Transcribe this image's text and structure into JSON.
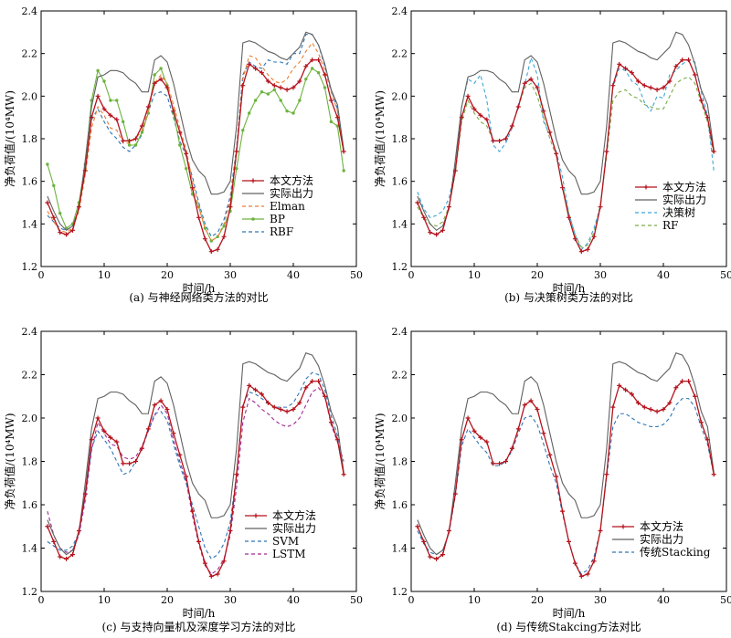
{
  "chart_data": [
    {
      "type": "line",
      "caption": "(a) 与神经网络类方法的对比",
      "xlabel": "时间/h",
      "ylabel": "净负荷值/(10⁴MW)",
      "xlim": [
        0,
        50
      ],
      "ylim": [
        1.2,
        2.4
      ],
      "xticks": [
        0,
        10,
        20,
        30,
        40,
        50
      ],
      "yticks": [
        1.2,
        1.4,
        1.6,
        1.8,
        2.0,
        2.2,
        2.4
      ],
      "legend": "center-right",
      "series": [
        {
          "name": "本文方法",
          "color": "#b5121b",
          "dash": "",
          "marker": "cross",
          "values": [
            1.5,
            1.43,
            1.36,
            1.35,
            1.37,
            1.48,
            1.65,
            1.9,
            2.0,
            1.94,
            1.91,
            1.89,
            1.79,
            1.79,
            1.8,
            1.86,
            1.95,
            2.06,
            2.08,
            2.04,
            1.93,
            1.83,
            1.73,
            1.57,
            1.43,
            1.33,
            1.27,
            1.28,
            1.34,
            1.48,
            1.74,
            2.05,
            2.15,
            2.13,
            2.11,
            2.07,
            2.05,
            2.04,
            2.03,
            2.04,
            2.07,
            2.14,
            2.17,
            2.17,
            2.1,
            1.98,
            1.9,
            1.74
          ]
        },
        {
          "name": "实际出力",
          "color": "#606060",
          "dash": "",
          "marker": "none",
          "values": [
            1.53,
            1.46,
            1.4,
            1.37,
            1.39,
            1.47,
            1.7,
            1.95,
            2.09,
            2.1,
            2.12,
            2.12,
            2.11,
            2.08,
            2.06,
            2.02,
            2.02,
            2.17,
            2.19,
            2.16,
            2.06,
            1.93,
            1.8,
            1.7,
            1.65,
            1.62,
            1.54,
            1.54,
            1.55,
            1.6,
            1.86,
            2.25,
            2.26,
            2.25,
            2.23,
            2.21,
            2.2,
            2.18,
            2.17,
            2.2,
            2.23,
            2.3,
            2.29,
            2.24,
            2.15,
            2.03,
            1.96,
            1.75
          ]
        },
        {
          "name": "Elman",
          "color": "#ed7d31",
          "dash": "4,3",
          "marker": "none",
          "values": [
            1.46,
            1.41,
            1.37,
            1.36,
            1.38,
            1.46,
            1.63,
            1.85,
            1.95,
            1.91,
            1.85,
            1.84,
            1.78,
            1.78,
            1.8,
            1.84,
            1.93,
            2.06,
            2.1,
            2.06,
            1.96,
            1.85,
            1.75,
            1.6,
            1.48,
            1.38,
            1.32,
            1.34,
            1.4,
            1.51,
            1.75,
            2.08,
            2.19,
            2.18,
            2.14,
            2.1,
            2.07,
            2.06,
            2.08,
            2.13,
            2.16,
            2.21,
            2.25,
            2.2,
            2.12,
            2.02,
            1.93,
            1.74
          ]
        },
        {
          "name": "BP",
          "color": "#6cb33e",
          "dash": "",
          "marker": "dot",
          "values": [
            1.68,
            1.58,
            1.45,
            1.38,
            1.4,
            1.5,
            1.68,
            1.98,
            2.12,
            2.07,
            1.98,
            1.98,
            1.88,
            1.77,
            1.77,
            1.83,
            1.92,
            2.1,
            2.13,
            2.05,
            1.92,
            1.77,
            1.66,
            1.54,
            1.48,
            1.38,
            1.32,
            1.34,
            1.39,
            1.46,
            1.66,
            1.84,
            1.92,
            1.98,
            2.02,
            2.01,
            2.03,
            1.98,
            1.93,
            1.92,
            1.98,
            2.08,
            2.13,
            2.11,
            2.04,
            1.88,
            1.86,
            1.65
          ]
        },
        {
          "name": "RBF",
          "color": "#2e75b6",
          "dash": "4,3",
          "marker": "none",
          "values": [
            1.44,
            1.41,
            1.38,
            1.37,
            1.39,
            1.47,
            1.65,
            1.89,
            1.94,
            1.88,
            1.83,
            1.8,
            1.76,
            1.74,
            1.77,
            1.82,
            1.93,
            2.01,
            2.02,
            2.0,
            1.9,
            1.79,
            1.72,
            1.62,
            1.5,
            1.4,
            1.34,
            1.36,
            1.42,
            1.53,
            1.76,
            2.1,
            2.16,
            2.14,
            2.13,
            2.17,
            2.16,
            2.16,
            2.15,
            2.2,
            2.2,
            2.29,
            2.29,
            2.24,
            2.14,
            2.03,
            1.94,
            1.73
          ]
        }
      ]
    },
    {
      "type": "line",
      "caption": "(b) 与决策树类方法的对比",
      "xlabel": "时间/h",
      "ylabel": "净负荷值/(10⁴MW)",
      "xlim": [
        0,
        50
      ],
      "ylim": [
        1.2,
        2.4
      ],
      "xticks": [
        0,
        10,
        20,
        30,
        40,
        50
      ],
      "yticks": [
        1.2,
        1.4,
        1.6,
        1.8,
        2.0,
        2.2,
        2.4
      ],
      "legend": "lower-right",
      "series": [
        {
          "name": "本文方法",
          "color": "#b5121b",
          "dash": "",
          "marker": "cross",
          "values": [
            1.5,
            1.43,
            1.36,
            1.35,
            1.37,
            1.48,
            1.65,
            1.9,
            2.0,
            1.94,
            1.91,
            1.89,
            1.79,
            1.79,
            1.8,
            1.86,
            1.95,
            2.06,
            2.08,
            2.04,
            1.93,
            1.83,
            1.73,
            1.57,
            1.43,
            1.33,
            1.27,
            1.28,
            1.34,
            1.48,
            1.74,
            2.05,
            2.15,
            2.13,
            2.11,
            2.07,
            2.05,
            2.04,
            2.03,
            2.04,
            2.07,
            2.14,
            2.17,
            2.17,
            2.1,
            1.98,
            1.9,
            1.74
          ]
        },
        {
          "name": "实际出力",
          "color": "#606060",
          "dash": "",
          "marker": "none",
          "values": [
            1.53,
            1.46,
            1.4,
            1.37,
            1.39,
            1.47,
            1.7,
            1.95,
            2.09,
            2.1,
            2.12,
            2.12,
            2.11,
            2.08,
            2.06,
            2.02,
            2.02,
            2.17,
            2.19,
            2.16,
            2.06,
            1.93,
            1.8,
            1.7,
            1.65,
            1.62,
            1.54,
            1.54,
            1.55,
            1.6,
            1.86,
            2.25,
            2.26,
            2.25,
            2.23,
            2.21,
            2.2,
            2.18,
            2.17,
            2.2,
            2.23,
            2.3,
            2.29,
            2.24,
            2.15,
            2.03,
            1.96,
            1.75
          ]
        },
        {
          "name": "决策树",
          "color": "#3ba6d6",
          "dash": "4,3",
          "marker": "none",
          "values": [
            1.55,
            1.47,
            1.43,
            1.44,
            1.46,
            1.52,
            1.66,
            1.95,
            2.08,
            2.06,
            2.1,
            1.98,
            1.77,
            1.74,
            1.78,
            1.85,
            1.96,
            2.05,
            2.18,
            2.1,
            1.88,
            1.82,
            1.74,
            1.62,
            1.45,
            1.35,
            1.28,
            1.31,
            1.38,
            1.48,
            1.75,
            2.04,
            2.13,
            2.12,
            2.07,
            2.05,
            1.97,
            1.93,
            2.0,
            1.99,
            2.1,
            2.12,
            2.15,
            2.17,
            2.16,
            2.02,
            1.91,
            1.65
          ]
        },
        {
          "name": "RF",
          "color": "#7caa48",
          "dash": "4,3",
          "marker": "none",
          "values": [
            1.48,
            1.43,
            1.4,
            1.39,
            1.41,
            1.48,
            1.64,
            1.88,
            1.98,
            1.92,
            1.88,
            1.86,
            1.79,
            1.79,
            1.8,
            1.86,
            1.95,
            2.04,
            2.06,
            2.0,
            1.9,
            1.8,
            1.72,
            1.58,
            1.45,
            1.35,
            1.29,
            1.3,
            1.36,
            1.49,
            1.72,
            1.98,
            2.02,
            2.03,
            2.0,
            1.99,
            1.96,
            1.95,
            1.94,
            1.94,
            2.0,
            2.06,
            2.08,
            2.09,
            2.06,
            1.97,
            1.88,
            1.72
          ]
        }
      ]
    },
    {
      "type": "line",
      "caption": "(c) 与支持向量机及深度学习方法的对比",
      "xlabel": "时间/h",
      "ylabel": "净负荷值/(10⁴MW)",
      "xlim": [
        0,
        50
      ],
      "ylim": [
        1.2,
        2.4
      ],
      "xticks": [
        0,
        10,
        20,
        30,
        40,
        50
      ],
      "yticks": [
        1.2,
        1.4,
        1.6,
        1.8,
        2.0,
        2.2,
        2.4
      ],
      "legend": "lower-right",
      "series": [
        {
          "name": "本文方法",
          "color": "#b5121b",
          "dash": "",
          "marker": "cross",
          "values": [
            1.5,
            1.43,
            1.36,
            1.35,
            1.37,
            1.48,
            1.65,
            1.9,
            2.0,
            1.94,
            1.91,
            1.89,
            1.79,
            1.79,
            1.8,
            1.86,
            1.95,
            2.06,
            2.08,
            2.04,
            1.93,
            1.83,
            1.73,
            1.57,
            1.43,
            1.33,
            1.27,
            1.28,
            1.34,
            1.48,
            1.74,
            2.05,
            2.15,
            2.13,
            2.11,
            2.07,
            2.05,
            2.04,
            2.03,
            2.04,
            2.07,
            2.14,
            2.17,
            2.17,
            2.1,
            1.98,
            1.9,
            1.74
          ]
        },
        {
          "name": "实际出力",
          "color": "#606060",
          "dash": "",
          "marker": "none",
          "values": [
            1.53,
            1.46,
            1.4,
            1.37,
            1.39,
            1.47,
            1.7,
            1.95,
            2.09,
            2.1,
            2.12,
            2.12,
            2.11,
            2.08,
            2.06,
            2.02,
            2.02,
            2.17,
            2.19,
            2.16,
            2.06,
            1.93,
            1.8,
            1.7,
            1.65,
            1.62,
            1.54,
            1.54,
            1.55,
            1.6,
            1.86,
            2.25,
            2.26,
            2.25,
            2.23,
            2.21,
            2.2,
            2.18,
            2.17,
            2.2,
            2.23,
            2.3,
            2.29,
            2.24,
            2.15,
            2.03,
            1.96,
            1.75
          ]
        },
        {
          "name": "SVM",
          "color": "#2e75b6",
          "dash": "4,3",
          "marker": "none",
          "values": [
            1.43,
            1.41,
            1.39,
            1.39,
            1.41,
            1.47,
            1.64,
            1.86,
            1.94,
            1.9,
            1.86,
            1.8,
            1.74,
            1.75,
            1.8,
            1.86,
            1.94,
            2.02,
            2.03,
            1.99,
            1.88,
            1.78,
            1.7,
            1.6,
            1.5,
            1.4,
            1.35,
            1.37,
            1.42,
            1.52,
            1.74,
            2.06,
            2.12,
            2.11,
            2.09,
            2.07,
            2.05,
            2.05,
            2.05,
            2.07,
            2.12,
            2.18,
            2.21,
            2.2,
            2.13,
            2.01,
            1.92,
            1.74
          ]
        },
        {
          "name": "LSTM",
          "color": "#a02b93",
          "dash": "4,3",
          "marker": "none",
          "values": [
            1.57,
            1.46,
            1.4,
            1.38,
            1.39,
            1.46,
            1.62,
            1.85,
            1.98,
            1.93,
            1.88,
            1.87,
            1.82,
            1.81,
            1.82,
            1.87,
            1.94,
            2.01,
            2.06,
            2.02,
            1.9,
            1.8,
            1.71,
            1.55,
            1.42,
            1.32,
            1.28,
            1.3,
            1.35,
            1.46,
            1.68,
            1.98,
            2.09,
            2.07,
            2.04,
            2.02,
            1.99,
            1.97,
            1.96,
            1.97,
            2.0,
            2.06,
            2.12,
            2.14,
            2.1,
            1.97,
            1.89,
            1.8
          ]
        }
      ]
    },
    {
      "type": "line",
      "caption": "(d) 与传统Stakcing方法对比",
      "xlabel": "时间/h",
      "ylabel": "净负荷值/(10⁴MW)",
      "xlim": [
        0,
        50
      ],
      "ylim": [
        1.2,
        2.4
      ],
      "xticks": [
        0,
        10,
        20,
        30,
        40,
        50
      ],
      "yticks": [
        1.2,
        1.4,
        1.6,
        1.8,
        2.0,
        2.2,
        2.4
      ],
      "legend": "lower-right",
      "series": [
        {
          "name": "本文方法",
          "color": "#b5121b",
          "dash": "",
          "marker": "cross",
          "values": [
            1.5,
            1.43,
            1.36,
            1.35,
            1.37,
            1.48,
            1.65,
            1.9,
            2.0,
            1.94,
            1.91,
            1.89,
            1.79,
            1.79,
            1.8,
            1.86,
            1.95,
            2.06,
            2.08,
            2.04,
            1.93,
            1.83,
            1.73,
            1.57,
            1.43,
            1.33,
            1.27,
            1.28,
            1.34,
            1.48,
            1.74,
            2.05,
            2.15,
            2.13,
            2.11,
            2.07,
            2.05,
            2.04,
            2.03,
            2.04,
            2.07,
            2.14,
            2.17,
            2.17,
            2.1,
            1.98,
            1.9,
            1.74
          ]
        },
        {
          "name": "实际出力",
          "color": "#606060",
          "dash": "",
          "marker": "none",
          "values": [
            1.53,
            1.46,
            1.4,
            1.37,
            1.39,
            1.47,
            1.7,
            1.95,
            2.09,
            2.1,
            2.12,
            2.12,
            2.11,
            2.08,
            2.06,
            2.02,
            2.02,
            2.17,
            2.19,
            2.16,
            2.06,
            1.93,
            1.8,
            1.7,
            1.65,
            1.62,
            1.54,
            1.54,
            1.55,
            1.6,
            1.86,
            2.25,
            2.26,
            2.25,
            2.23,
            2.21,
            2.2,
            2.18,
            2.17,
            2.2,
            2.23,
            2.3,
            2.29,
            2.24,
            2.15,
            2.03,
            1.96,
            1.75
          ]
        },
        {
          "name": "传统Stacking",
          "color": "#2e75b6",
          "dash": "4,3",
          "marker": "none",
          "values": [
            1.48,
            1.42,
            1.38,
            1.37,
            1.39,
            1.47,
            1.64,
            1.87,
            1.95,
            1.91,
            1.87,
            1.84,
            1.78,
            1.78,
            1.8,
            1.85,
            1.93,
            2.0,
            2.01,
            1.97,
            1.88,
            1.78,
            1.7,
            1.56,
            1.43,
            1.33,
            1.28,
            1.3,
            1.36,
            1.48,
            1.73,
            1.96,
            2.02,
            2.02,
            2.0,
            1.98,
            1.97,
            1.96,
            1.96,
            1.97,
            2.0,
            2.06,
            2.09,
            2.09,
            2.05,
            1.96,
            1.88,
            1.74
          ]
        }
      ]
    }
  ]
}
